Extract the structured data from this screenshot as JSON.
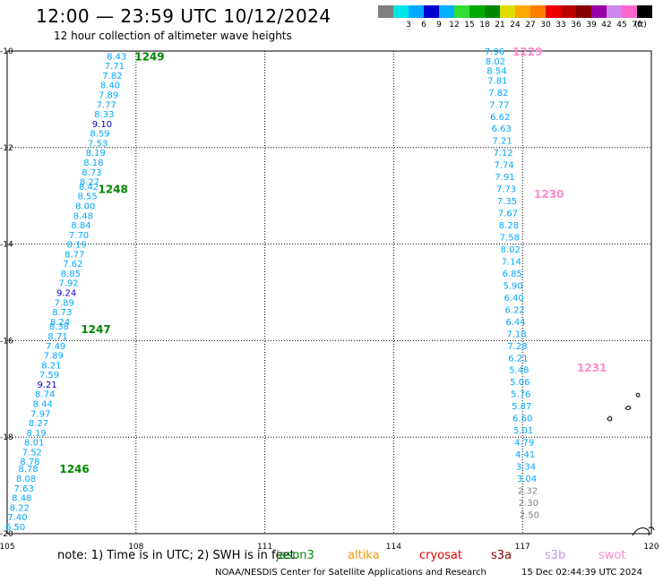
{
  "header": {
    "title": "12:00 — 23:59 UTC 10/12/2024",
    "subtitle": "12 hour collection of altimeter wave heights"
  },
  "colorbar": {
    "unit_label": "(ft)",
    "bins": [
      {
        "label": "",
        "color": "#7f7f7f"
      },
      {
        "label": "3",
        "color": "#00e5e5"
      },
      {
        "label": "6",
        "color": "#00a8ff"
      },
      {
        "label": "9",
        "color": "#0000cc"
      },
      {
        "label": "12",
        "color": "#00b0ff"
      },
      {
        "label": "15",
        "color": "#33dd33"
      },
      {
        "label": "18",
        "color": "#00aa00"
      },
      {
        "label": "21",
        "color": "#008800"
      },
      {
        "label": "24",
        "color": "#dddd00"
      },
      {
        "label": "27",
        "color": "#ffaa00"
      },
      {
        "label": "30",
        "color": "#ff8000"
      },
      {
        "label": "33",
        "color": "#ee0000"
      },
      {
        "label": "36",
        "color": "#bb0000"
      },
      {
        "label": "39",
        "color": "#880000"
      },
      {
        "label": "42",
        "color": "#9900aa"
      },
      {
        "label": "45",
        "color": "#cc88ee"
      },
      {
        "label": "70",
        "color": "#ff66cc"
      },
      {
        "label": "",
        "color": "#000000"
      }
    ]
  },
  "footer": {
    "note": "note: 1) Time is in UTC; 2) SWH is in feet",
    "satellites": [
      {
        "name": "jason3",
        "color": "#008800"
      },
      {
        "name": "altika",
        "color": "#ff9900"
      },
      {
        "name": "cryosat",
        "color": "#ee0000"
      },
      {
        "name": "s3a",
        "color": "#880000"
      },
      {
        "name": "s3b",
        "color": "#bb99ee"
      },
      {
        "name": "swot",
        "color": "#ff88cc"
      }
    ],
    "credit": "NOAA/NESDIS Center for Satellite Applications and Research",
    "timestamp": "15 Dec 02:44:39 UTC 2024"
  },
  "chart_data": {
    "type": "scatter",
    "xlim": [
      105,
      120
    ],
    "ylim": [
      -20,
      -10
    ],
    "x_ticks": [
      "105",
      "108",
      "111",
      "114",
      "117",
      "120"
    ],
    "y_ticks": [
      "-10",
      "-12",
      "-14",
      "-16",
      "-18",
      "-20"
    ],
    "grid": true,
    "colors": {
      "low": "#7f7f7f",
      "mid": "#00a8ff",
      "high": "#0000cc",
      "pass_label_jason3": "#008800",
      "pass_label_swot": "#ff88cc"
    },
    "pass_labels": [
      {
        "text": "1249",
        "lon": 107.55,
        "lat": -10.1,
        "satellite": "jason3"
      },
      {
        "text": "1248",
        "lon": 106.7,
        "lat": -12.85,
        "satellite": "jason3"
      },
      {
        "text": "1247",
        "lon": 106.3,
        "lat": -15.75,
        "satellite": "jason3"
      },
      {
        "text": "1246",
        "lon": 105.8,
        "lat": -18.65,
        "satellite": "jason3"
      },
      {
        "text": "1229",
        "lon": 116.35,
        "lat": -10.0,
        "satellite": "swot"
      },
      {
        "text": "1230",
        "lon": 116.85,
        "lat": -12.95,
        "satellite": "swot"
      },
      {
        "text": "1231",
        "lon": 117.85,
        "lat": -16.55,
        "satellite": "swot"
      }
    ],
    "series": [
      {
        "points": [
          {
            "lon": 107.55,
            "lat": -10.1,
            "swh": "8.43"
          },
          {
            "lon": 107.5,
            "lat": -10.3,
            "swh": "7.71"
          },
          {
            "lon": 107.45,
            "lat": -10.5,
            "swh": "7.82"
          },
          {
            "lon": 107.4,
            "lat": -10.7,
            "swh": "8.40"
          },
          {
            "lon": 107.36,
            "lat": -10.9,
            "swh": "7.89"
          },
          {
            "lon": 107.31,
            "lat": -11.1,
            "swh": "7.77"
          },
          {
            "lon": 107.26,
            "lat": -11.3,
            "swh": "8.33"
          },
          {
            "lon": 107.21,
            "lat": -11.5,
            "swh": "9.10"
          },
          {
            "lon": 107.16,
            "lat": -11.7,
            "swh": "8.59"
          },
          {
            "lon": 107.11,
            "lat": -11.9,
            "swh": "7.53"
          },
          {
            "lon": 107.06,
            "lat": -12.1,
            "swh": "8.19"
          },
          {
            "lon": 107.01,
            "lat": -12.3,
            "swh": "8.18"
          },
          {
            "lon": 106.97,
            "lat": -12.5,
            "swh": "8.73"
          },
          {
            "lon": 106.92,
            "lat": -12.7,
            "swh": "8.27"
          },
          {
            "lon": 106.9,
            "lat": -12.8,
            "swh": "8.42"
          },
          {
            "lon": 106.87,
            "lat": -13.0,
            "swh": "8.55"
          },
          {
            "lon": 106.82,
            "lat": -13.2,
            "swh": "8.00"
          },
          {
            "lon": 106.77,
            "lat": -13.4,
            "swh": "8.48"
          },
          {
            "lon": 106.72,
            "lat": -13.6,
            "swh": "8.84"
          },
          {
            "lon": 106.67,
            "lat": -13.8,
            "swh": "7.70"
          },
          {
            "lon": 106.62,
            "lat": -14.0,
            "swh": "8.19"
          },
          {
            "lon": 106.57,
            "lat": -14.2,
            "swh": "8.77"
          },
          {
            "lon": 106.53,
            "lat": -14.4,
            "swh": "7.62"
          },
          {
            "lon": 106.48,
            "lat": -14.6,
            "swh": "8.85"
          },
          {
            "lon": 106.43,
            "lat": -14.8,
            "swh": "7.92"
          },
          {
            "lon": 106.38,
            "lat": -15.0,
            "swh": "9.24"
          },
          {
            "lon": 106.33,
            "lat": -15.2,
            "swh": "7.89"
          },
          {
            "lon": 106.28,
            "lat": -15.4,
            "swh": "8.73"
          },
          {
            "lon": 106.23,
            "lat": -15.6,
            "swh": "8.24"
          },
          {
            "lon": 106.21,
            "lat": -15.7,
            "swh": "8.38"
          },
          {
            "lon": 106.18,
            "lat": -15.9,
            "swh": "8.71"
          },
          {
            "lon": 106.13,
            "lat": -16.1,
            "swh": "7.49"
          },
          {
            "lon": 106.08,
            "lat": -16.3,
            "swh": "7.89"
          },
          {
            "lon": 106.03,
            "lat": -16.5,
            "swh": "8.21"
          },
          {
            "lon": 105.98,
            "lat": -16.7,
            "swh": "7.59"
          },
          {
            "lon": 105.93,
            "lat": -16.9,
            "swh": "9.21"
          },
          {
            "lon": 105.88,
            "lat": -17.1,
            "swh": "8.74"
          },
          {
            "lon": 105.83,
            "lat": -17.3,
            "swh": "8.44"
          },
          {
            "lon": 105.78,
            "lat": -17.5,
            "swh": "7.97"
          },
          {
            "lon": 105.73,
            "lat": -17.7,
            "swh": "8.27"
          },
          {
            "lon": 105.68,
            "lat": -17.9,
            "swh": "8.19"
          },
          {
            "lon": 105.63,
            "lat": -18.1,
            "swh": "8.01"
          },
          {
            "lon": 105.58,
            "lat": -18.3,
            "swh": "7.52"
          },
          {
            "lon": 105.53,
            "lat": -18.5,
            "swh": "8.78"
          },
          {
            "lon": 105.49,
            "lat": -18.65,
            "swh": "8.78"
          },
          {
            "lon": 105.44,
            "lat": -18.85,
            "swh": "8.08"
          },
          {
            "lon": 105.39,
            "lat": -19.05,
            "swh": "7.63"
          },
          {
            "lon": 105.34,
            "lat": -19.25,
            "swh": "8.48"
          },
          {
            "lon": 105.29,
            "lat": -19.45,
            "swh": "8.22"
          },
          {
            "lon": 105.24,
            "lat": -19.65,
            "swh": "7.40"
          },
          {
            "lon": 105.19,
            "lat": -19.85,
            "swh": "6.50"
          }
        ]
      },
      {
        "points": [
          {
            "lon": 116.35,
            "lat": -10.0,
            "swh": "7.96"
          },
          {
            "lon": 116.37,
            "lat": -10.2,
            "swh": "8.02"
          },
          {
            "lon": 116.4,
            "lat": -10.4,
            "swh": "8.54"
          },
          {
            "lon": 116.42,
            "lat": -10.6,
            "swh": "7.81"
          },
          {
            "lon": 116.44,
            "lat": -10.85,
            "swh": "7.82"
          },
          {
            "lon": 116.46,
            "lat": -11.1,
            "swh": "7.77"
          },
          {
            "lon": 116.48,
            "lat": -11.35,
            "swh": "6.62"
          },
          {
            "lon": 116.51,
            "lat": -11.6,
            "swh": "6.63"
          },
          {
            "lon": 116.53,
            "lat": -11.85,
            "swh": "7.21"
          },
          {
            "lon": 116.55,
            "lat": -12.1,
            "swh": "7.12"
          },
          {
            "lon": 116.57,
            "lat": -12.35,
            "swh": "7.74"
          },
          {
            "lon": 116.59,
            "lat": -12.6,
            "swh": "7.91"
          },
          {
            "lon": 116.62,
            "lat": -12.85,
            "swh": "7.73"
          },
          {
            "lon": 116.64,
            "lat": -13.1,
            "swh": "7.35"
          },
          {
            "lon": 116.66,
            "lat": -13.35,
            "swh": "7.67"
          },
          {
            "lon": 116.68,
            "lat": -13.6,
            "swh": "8.28"
          },
          {
            "lon": 116.7,
            "lat": -13.85,
            "swh": "7.58"
          },
          {
            "lon": 116.72,
            "lat": -14.1,
            "swh": "8.02"
          },
          {
            "lon": 116.74,
            "lat": -14.35,
            "swh": "7.14"
          },
          {
            "lon": 116.76,
            "lat": -14.6,
            "swh": "6.85"
          },
          {
            "lon": 116.78,
            "lat": -14.85,
            "swh": "5.90"
          },
          {
            "lon": 116.8,
            "lat": -15.1,
            "swh": "6.40"
          },
          {
            "lon": 116.82,
            "lat": -15.35,
            "swh": "6.22"
          },
          {
            "lon": 116.84,
            "lat": -15.6,
            "swh": "6.44"
          },
          {
            "lon": 116.86,
            "lat": -15.85,
            "swh": "7.18"
          },
          {
            "lon": 116.88,
            "lat": -16.1,
            "swh": "7.28"
          },
          {
            "lon": 116.9,
            "lat": -16.35,
            "swh": "6.21"
          },
          {
            "lon": 116.92,
            "lat": -16.6,
            "swh": "5.48"
          },
          {
            "lon": 116.94,
            "lat": -16.85,
            "swh": "5.06"
          },
          {
            "lon": 116.96,
            "lat": -17.1,
            "swh": "5.76"
          },
          {
            "lon": 116.98,
            "lat": -17.35,
            "swh": "5.87"
          },
          {
            "lon": 117.0,
            "lat": -17.6,
            "swh": "6.60"
          },
          {
            "lon": 117.02,
            "lat": -17.85,
            "swh": "5.01"
          },
          {
            "lon": 117.04,
            "lat": -18.1,
            "swh": "4.79"
          },
          {
            "lon": 117.06,
            "lat": -18.35,
            "swh": "4.41"
          },
          {
            "lon": 117.08,
            "lat": -18.6,
            "swh": "3.34"
          },
          {
            "lon": 117.1,
            "lat": -18.85,
            "swh": "3.04"
          },
          {
            "lon": 117.12,
            "lat": -19.1,
            "swh": "2.32"
          },
          {
            "lon": 117.14,
            "lat": -19.35,
            "swh": "2.30"
          },
          {
            "lon": 117.16,
            "lat": -19.6,
            "swh": "2.50"
          }
        ]
      }
    ]
  }
}
